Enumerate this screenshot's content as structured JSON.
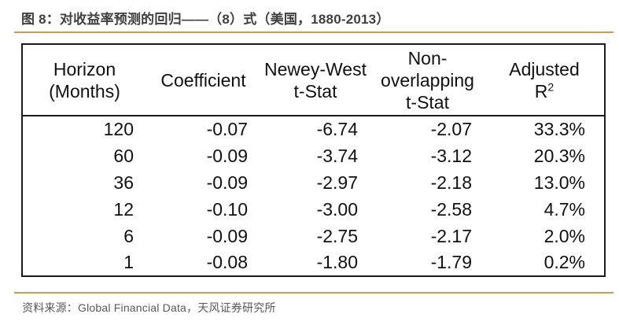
{
  "figure": {
    "title": "图 8：对收益率预测的回归——（8）式（美国，1880-2013）",
    "source": "资料来源：Global Financial Data，天风证券研究所"
  },
  "colors": {
    "accent_gold_rule": "#C99D4F",
    "title_text": "#3F3F3F",
    "source_text": "#595959",
    "table_border": "#1A1A1A",
    "table_text": "#111111"
  },
  "table": {
    "headers": {
      "horizon": {
        "line1": "Horizon",
        "line2": "(Months)"
      },
      "coefficient": "Coefficient",
      "newey_west": {
        "line1": "Newey-West",
        "line2": "t-Stat"
      },
      "non_overlapping": {
        "line1": "Non-",
        "line2": "overlapping",
        "line3": "t-Stat"
      },
      "adjusted_r2": {
        "line1": "Adjusted",
        "base": "R",
        "sup": "2"
      }
    },
    "rows": [
      {
        "horizon": "120",
        "coefficient": "-0.07",
        "newey_west_tstat": "-6.74",
        "non_overlapping_tstat": "-2.07",
        "adjusted_r2": "33.3%"
      },
      {
        "horizon": "60",
        "coefficient": "-0.09",
        "newey_west_tstat": "-3.74",
        "non_overlapping_tstat": "-3.12",
        "adjusted_r2": "20.3%"
      },
      {
        "horizon": "36",
        "coefficient": "-0.09",
        "newey_west_tstat": "-2.97",
        "non_overlapping_tstat": "-2.18",
        "adjusted_r2": "13.0%"
      },
      {
        "horizon": "12",
        "coefficient": "-0.10",
        "newey_west_tstat": "-3.00",
        "non_overlapping_tstat": "-2.58",
        "adjusted_r2": "4.7%"
      },
      {
        "horizon": "6",
        "coefficient": "-0.09",
        "newey_west_tstat": "-2.75",
        "non_overlapping_tstat": "-2.17",
        "adjusted_r2": "2.0%"
      },
      {
        "horizon": "1",
        "coefficient": "-0.08",
        "newey_west_tstat": "-1.80",
        "non_overlapping_tstat": "-1.79",
        "adjusted_r2": "0.2%"
      }
    ]
  }
}
